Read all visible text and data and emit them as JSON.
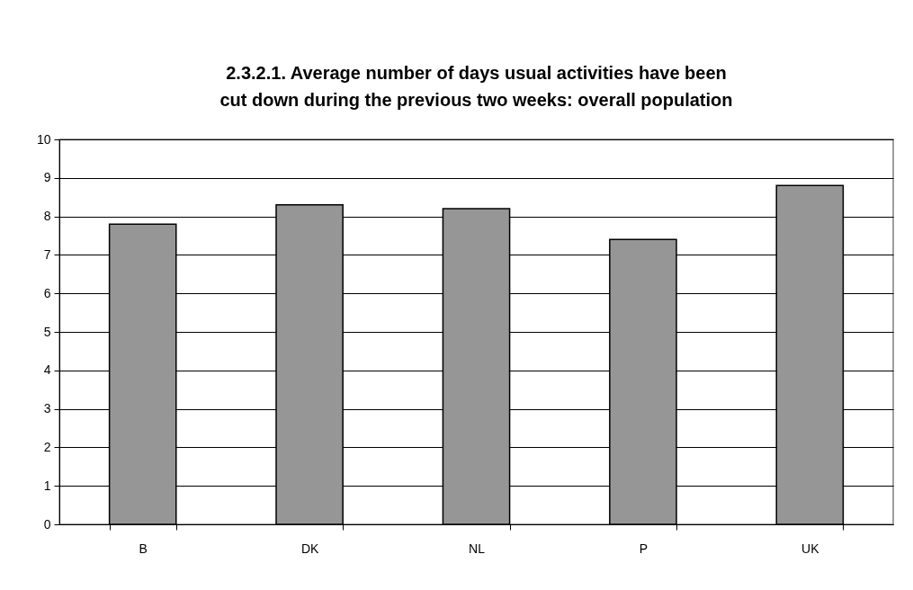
{
  "chart_data": {
    "type": "bar",
    "title": "2.3.2.1. Average number of days usual activities have been cut down during the previous two weeks: overall population",
    "categories": [
      "B",
      "DK",
      "NL",
      "P",
      "UK"
    ],
    "values": [
      7.8,
      8.3,
      8.2,
      7.4,
      8.8
    ],
    "color": "#969696",
    "ylim": [
      0,
      10
    ],
    "yticks": [
      0,
      1,
      2,
      3,
      4,
      5,
      6,
      7,
      8,
      9,
      10
    ],
    "grid": "y"
  }
}
